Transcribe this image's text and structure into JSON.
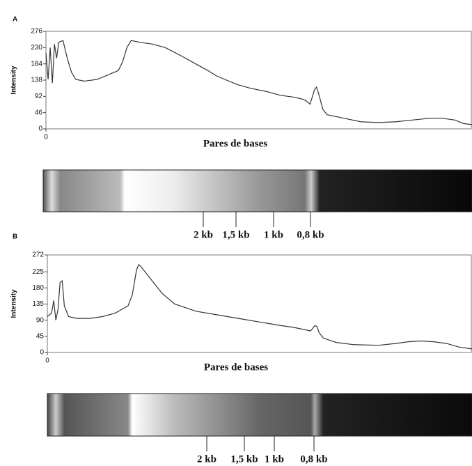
{
  "chart_data": [
    {
      "type": "line",
      "panel_label": "A",
      "y_label": "Intensity",
      "x_label": "Pares de bases",
      "xlim": [
        0,
        100
      ],
      "xticks": [
        0
      ],
      "ylim": [
        0,
        276
      ],
      "yticks": [
        0,
        46,
        92,
        138,
        184,
        230,
        276
      ],
      "color": "#333333",
      "x": [
        0,
        0.5,
        1,
        1.5,
        2,
        2.5,
        3,
        4,
        5,
        6,
        7,
        9,
        12,
        15,
        17,
        18,
        19,
        20,
        22,
        25,
        28,
        32,
        35,
        38,
        40,
        42,
        45,
        48,
        52,
        55,
        58,
        60,
        61,
        62,
        63,
        63.5,
        64,
        65,
        66,
        70,
        74,
        78,
        82,
        86,
        90,
        93,
        96,
        98,
        100
      ],
      "values": [
        215,
        140,
        230,
        130,
        240,
        200,
        245,
        250,
        200,
        160,
        140,
        135,
        140,
        155,
        165,
        190,
        230,
        250,
        245,
        240,
        230,
        205,
        185,
        165,
        150,
        140,
        125,
        115,
        105,
        95,
        90,
        85,
        80,
        70,
        110,
        118,
        100,
        55,
        40,
        30,
        20,
        18,
        20,
        25,
        30,
        30,
        25,
        15,
        12
      ],
      "annotations": [
        "2 kb",
        "1,5 kb",
        "1 kb",
        "0,8 kb"
      ]
    },
    {
      "type": "line",
      "panel_label": "B",
      "y_label": "Intensity",
      "x_label": "Pares de bases",
      "xlim": [
        0,
        100
      ],
      "xticks": [
        0
      ],
      "ylim": [
        0,
        272
      ],
      "yticks": [
        0,
        45,
        90,
        135,
        180,
        225,
        272
      ],
      "color": "#333333",
      "x": [
        0,
        1,
        1.5,
        2,
        2.5,
        3,
        3.5,
        4,
        5,
        7,
        10,
        13,
        16,
        19,
        20,
        21,
        21.5,
        22,
        24,
        27,
        30,
        35,
        40,
        45,
        50,
        55,
        58,
        60,
        62,
        63,
        63.5,
        64,
        65,
        68,
        72,
        78,
        82,
        85,
        88,
        91,
        94,
        97,
        100
      ],
      "values": [
        100,
        110,
        145,
        90,
        120,
        195,
        200,
        130,
        100,
        95,
        95,
        100,
        110,
        130,
        160,
        230,
        245,
        240,
        210,
        165,
        135,
        115,
        105,
        95,
        85,
        75,
        70,
        65,
        60,
        75,
        72,
        55,
        40,
        28,
        22,
        20,
        25,
        30,
        32,
        30,
        25,
        15,
        10
      ],
      "annotations": [
        "2 kb",
        "1,5 kb",
        "1 kb",
        "0,8 kb"
      ]
    }
  ]
}
